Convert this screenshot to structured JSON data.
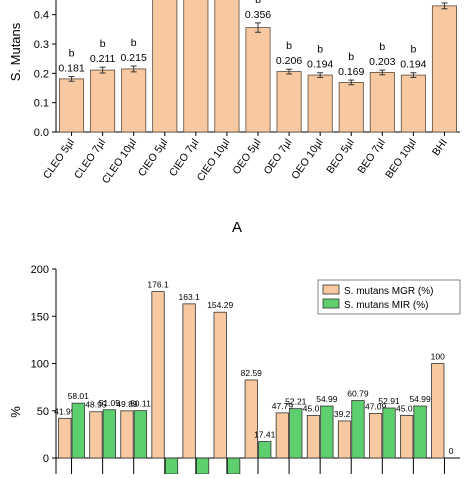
{
  "chart_data": [
    {
      "type": "bar",
      "panel_label": "A",
      "ylabel": "S. Mutans",
      "ylim": [
        0,
        0.45
      ],
      "yticks": [
        0.0,
        0.1,
        0.2,
        0.3,
        0.4
      ],
      "ytick_labels": [
        "0.0",
        "0.1",
        "0.2",
        "0.3",
        "0.4"
      ],
      "categories": [
        "CLEO 5µl",
        "CLEO 7µl",
        "CLEO 10µl",
        "CIEO 5µl",
        "CIEO 7µl",
        "CIEO 10µl",
        "OEO 5µl",
        "OEO 7µl",
        "OEO 10µl",
        "BEO 5µl",
        "BEO 7µl",
        "BEO 10µl",
        "BHI"
      ],
      "values": [
        0.181,
        0.211,
        0.215,
        0.46,
        0.46,
        0.46,
        0.356,
        0.206,
        0.194,
        0.169,
        0.203,
        0.194,
        0.43
      ],
      "errors": [
        0.008,
        0.01,
        0.01,
        0.0,
        0.0,
        0.0,
        0.016,
        0.008,
        0.008,
        0.008,
        0.008,
        0.008,
        0.01
      ],
      "value_labels": [
        "0.181",
        "0.211",
        "0.215",
        "",
        "",
        "",
        "0.356",
        "0.206",
        "0.194",
        "0.169",
        "0.203",
        "0.194",
        ""
      ],
      "significance_letters": [
        "b",
        "b",
        "b",
        "",
        "",
        "",
        "b",
        "b",
        "b",
        "b",
        "b",
        "b",
        ""
      ],
      "bar_color": "#f8c9a0",
      "bar_edge": "#5a4a3a",
      "grid": false
    },
    {
      "type": "bar",
      "ylabel": "%",
      "ylim": [
        -12,
        200
      ],
      "yticks": [
        0,
        50,
        100,
        150,
        200
      ],
      "ytick_labels": [
        "0",
        "50",
        "100",
        "150",
        "200"
      ],
      "legend_position": "top-right",
      "series": [
        {
          "name": "S. mutans MGR (%)",
          "color": "#f8c9a0",
          "values": [
            41.99,
            48.95,
            49.89,
            176.1,
            163.1,
            154.29,
            82.59,
            47.79,
            45.01,
            39.21,
            47.09,
            45.01,
            100
          ],
          "value_labels": [
            "41.99",
            "48.95",
            "49.89",
            "176.1",
            "163.1",
            "154.29",
            "82.59",
            "47.79",
            "45.01",
            "39.21",
            "47.09",
            "45.01",
            "100"
          ]
        },
        {
          "name": "S. mutans MIR (%)",
          "color": "#5ecf6e",
          "values": [
            58.01,
            51.05,
            50.11,
            -20,
            -20,
            -20,
            17.41,
            52.21,
            54.99,
            60.79,
            52.91,
            54.99,
            0
          ],
          "value_labels": [
            "58.01",
            "51.05",
            "50.11",
            "",
            "",
            "",
            "17.41",
            "52.21",
            "54.99",
            "60.79",
            "52.91",
            "54.99",
            "0"
          ]
        }
      ],
      "grid": false
    }
  ]
}
